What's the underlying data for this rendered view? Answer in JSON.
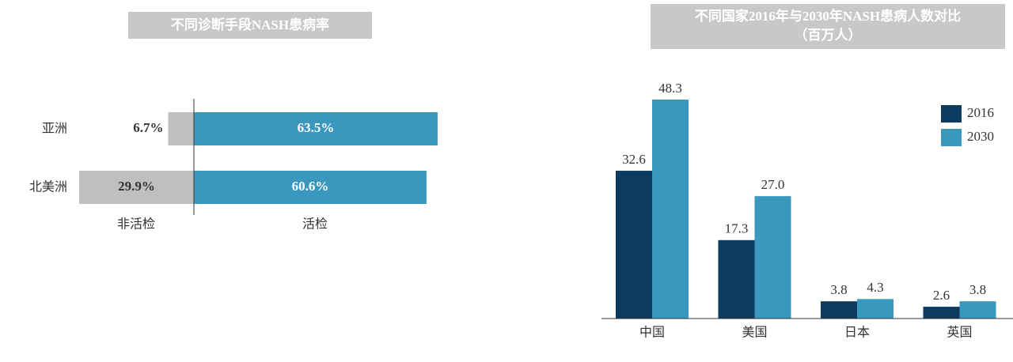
{
  "chart_data": [
    {
      "type": "hbar",
      "title": "不同诊断手段NASH患病率",
      "categories": [
        "亚洲",
        "北美洲"
      ],
      "series": [
        {
          "name": "非活检",
          "color": "#bfbfbf",
          "values": [
            6.7,
            29.9
          ],
          "value_labels": [
            "6.7%",
            "29.9%"
          ]
        },
        {
          "name": "活检",
          "color": "#3a98bf",
          "values": [
            63.5,
            60.6
          ],
          "value_labels": [
            "63.5%",
            "60.6%"
          ]
        }
      ]
    },
    {
      "type": "bar",
      "title": "不同国家2016年与2030年NASH患病人数对比",
      "subtitle": "（百万人）",
      "categories": [
        "中国",
        "美国",
        "日本",
        "英国"
      ],
      "series": [
        {
          "name": "2016",
          "color": "#0d3a5f",
          "values": [
            32.6,
            17.3,
            3.8,
            2.6
          ]
        },
        {
          "name": "2030",
          "color": "#3a98bf",
          "values": [
            48.3,
            27.0,
            4.3,
            3.8
          ],
          "value_labels": [
            "48.3",
            "27.0",
            "4.3",
            "3.8"
          ]
        }
      ],
      "legend": "upper right"
    }
  ]
}
